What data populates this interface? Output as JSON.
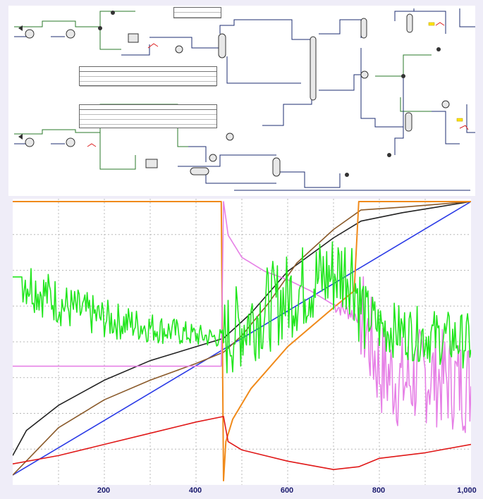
{
  "flowsheet": {
    "description_free": true
  },
  "trend_chart": {
    "x_tick_labels": [
      "200",
      "400",
      "600",
      "800",
      "1,000"
    ],
    "series_colors": {
      "green": "#22e61e",
      "violet": "#e680e6",
      "orange": "#f08a1a",
      "black": "#222222",
      "blue": "#2b3be6",
      "brown": "#8a5a2a",
      "red": "#e01818"
    }
  },
  "chart_data": {
    "type": "line",
    "xlim": [
      0,
      1000
    ],
    "grid": true,
    "x_tick_labels": [
      "200",
      "400",
      "600",
      "800",
      "1,000"
    ],
    "series": [
      {
        "color": "#2b3be6",
        "x": [
          0,
          1000
        ],
        "y": [
          0.02,
          1.0
        ]
      },
      {
        "color": "#222222",
        "x": [
          0,
          30,
          100,
          200,
          300,
          400,
          460,
          520,
          600,
          700,
          760,
          850,
          1000
        ],
        "y": [
          0.09,
          0.18,
          0.27,
          0.36,
          0.43,
          0.48,
          0.51,
          0.6,
          0.75,
          0.87,
          0.93,
          0.96,
          1.0
        ]
      },
      {
        "color": "#8a5a2a",
        "x": [
          0,
          100,
          200,
          300,
          400,
          460,
          500,
          560,
          620,
          700,
          760,
          850,
          1000
        ],
        "y": [
          0.02,
          0.19,
          0.29,
          0.36,
          0.42,
          0.46,
          0.52,
          0.64,
          0.78,
          0.9,
          0.97,
          0.98,
          1.0
        ]
      },
      {
        "color": "#f08a1a",
        "x": [
          0,
          455,
          460,
          465,
          480,
          520,
          600,
          700,
          745,
          755,
          1000
        ],
        "y": [
          1.0,
          1.0,
          0.0,
          0.14,
          0.22,
          0.33,
          0.48,
          0.62,
          0.68,
          1.0,
          1.0
        ]
      },
      {
        "color": "#e01818",
        "x": [
          0,
          100,
          200,
          300,
          400,
          460,
          470,
          500,
          600,
          700,
          755,
          800,
          900,
          1000
        ],
        "y": [
          0.06,
          0.09,
          0.13,
          0.17,
          0.21,
          0.23,
          0.14,
          0.11,
          0.07,
          0.04,
          0.05,
          0.08,
          0.1,
          0.13
        ]
      },
      {
        "color": "#e680e6",
        "x": [
          0,
          455,
          460,
          470,
          500,
          550,
          600,
          650,
          700,
          740,
          760,
          800,
          850,
          900,
          950,
          1000
        ],
        "y": [
          0.41,
          0.41,
          1.0,
          0.88,
          0.8,
          0.75,
          0.72,
          0.68,
          0.63,
          0.6,
          0.59,
          0.4,
          0.35,
          0.38,
          0.36,
          0.34
        ]
      },
      {
        "color": "#22e61e",
        "x": [
          0,
          20,
          60,
          120,
          200,
          300,
          400,
          460,
          520,
          600,
          650,
          700,
          740,
          760,
          800,
          900,
          1000
        ],
        "y": [
          0.73,
          0.73,
          0.68,
          0.62,
          0.58,
          0.55,
          0.52,
          0.51,
          0.58,
          0.66,
          0.71,
          0.74,
          0.76,
          0.62,
          0.55,
          0.52,
          0.5
        ]
      }
    ]
  }
}
